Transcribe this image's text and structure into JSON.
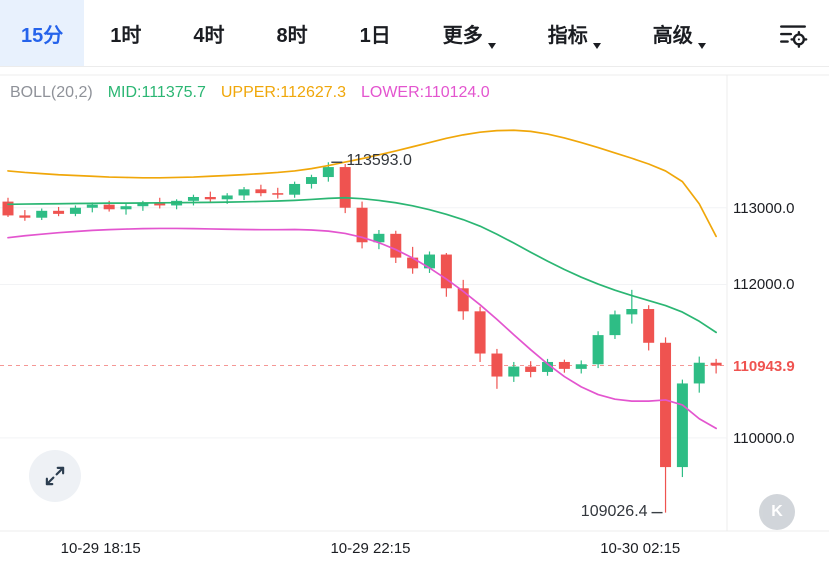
{
  "toolbar": {
    "tabs": [
      {
        "label": "15分",
        "selected": true
      },
      {
        "label": "1时"
      },
      {
        "label": "4时"
      },
      {
        "label": "8时"
      },
      {
        "label": "1日"
      },
      {
        "label": "更多",
        "dropdown": true
      },
      {
        "label": "指标",
        "dropdown": true
      },
      {
        "label": "高级",
        "dropdown": true
      }
    ]
  },
  "indicator": {
    "name": "BOLL(20,2)",
    "mid": "MID:111375.7",
    "upper": "UPPER:112627.3",
    "lower": "LOWER:110124.0"
  },
  "colors": {
    "up": "#2ebd85",
    "down": "#ef5350",
    "boll_mid": "#2bb673",
    "boll_upper": "#f0a70a",
    "boll_lower": "#e355cf",
    "accent_blue": "#2563eb",
    "accent_blue_bg": "#e8f1fd",
    "text_dark": "#1b1d22",
    "text_gray": "#8f9299",
    "grid": "#f2f3f5",
    "axis_border": "#ececec"
  },
  "watermark": "K",
  "chart_data": {
    "type": "candlestick",
    "interval": "15m",
    "indicator": "BOLL(20,2)",
    "ylim": [
      108800,
      114730
    ],
    "last_price": 110943.9,
    "last_price_label": "110943.9",
    "high": {
      "value": 113593.0,
      "label": "113593.0"
    },
    "low": {
      "value": 109026.4,
      "label": "109026.4"
    },
    "y_ticks": [
      {
        "label": "113000.0",
        "price": 113000
      },
      {
        "label": "112000.0",
        "price": 112000
      },
      {
        "label": "110000.0",
        "price": 110000
      }
    ],
    "x_ticks": [
      {
        "label": "10-29 18:15",
        "index": 5.5
      },
      {
        "label": "10-29 22:15",
        "index": 21.5
      },
      {
        "label": "10-30 02:15",
        "index": 37.5
      }
    ],
    "candles": [
      [
        113080,
        113130,
        112880,
        112900
      ],
      [
        112900,
        112970,
        112830,
        112870
      ],
      [
        112870,
        112990,
        112840,
        112960
      ],
      [
        112960,
        113010,
        112890,
        112920
      ],
      [
        112920,
        113030,
        112890,
        113000
      ],
      [
        113000,
        113070,
        112940,
        113040
      ],
      [
        113040,
        113090,
        112950,
        112980
      ],
      [
        112980,
        113050,
        112910,
        113020
      ],
      [
        113020,
        113090,
        112960,
        113060
      ],
      [
        113060,
        113130,
        112990,
        113030
      ],
      [
        113030,
        113110,
        112980,
        113090
      ],
      [
        113090,
        113170,
        113030,
        113140
      ],
      [
        113140,
        113210,
        113080,
        113110
      ],
      [
        113110,
        113190,
        113050,
        113160
      ],
      [
        113160,
        113270,
        113100,
        113240
      ],
      [
        113240,
        113300,
        113150,
        113190
      ],
      [
        113190,
        113260,
        113120,
        113170
      ],
      [
        113170,
        113340,
        113130,
        113310
      ],
      [
        113310,
        113430,
        113250,
        113400
      ],
      [
        113400,
        113593,
        113340,
        113530
      ],
      [
        113530,
        113570,
        112930,
        113000
      ],
      [
        113000,
        113080,
        112470,
        112550
      ],
      [
        112550,
        112710,
        112460,
        112660
      ],
      [
        112660,
        112700,
        112280,
        112350
      ],
      [
        112350,
        112490,
        112140,
        112210
      ],
      [
        112210,
        112430,
        112150,
        112390
      ],
      [
        112390,
        112410,
        111840,
        111950
      ],
      [
        111950,
        112060,
        111540,
        111650
      ],
      [
        111650,
        111710,
        110990,
        111100
      ],
      [
        111100,
        111160,
        110640,
        110800
      ],
      [
        110800,
        110990,
        110730,
        110930
      ],
      [
        110930,
        111000,
        110790,
        110860
      ],
      [
        110860,
        111030,
        110810,
        110990
      ],
      [
        110990,
        111020,
        110850,
        110900
      ],
      [
        110900,
        111010,
        110840,
        110960
      ],
      [
        110960,
        111390,
        110910,
        111340
      ],
      [
        111340,
        111660,
        111290,
        111610
      ],
      [
        111610,
        111930,
        111490,
        111680
      ],
      [
        111680,
        111730,
        111140,
        111240
      ],
      [
        111240,
        111310,
        109026.4,
        109620
      ],
      [
        109620,
        110760,
        109490,
        110710
      ],
      [
        110710,
        111060,
        110590,
        110980
      ],
      [
        110980,
        111030,
        110840,
        110943.9
      ]
    ],
    "bands": {
      "upper": [
        113480,
        113460,
        113445,
        113430,
        113420,
        113410,
        113400,
        113395,
        113390,
        113390,
        113395,
        113400,
        113410,
        113420,
        113432,
        113445,
        113460,
        113480,
        113510,
        113550,
        113595,
        113640,
        113690,
        113740,
        113795,
        113850,
        113905,
        113950,
        113985,
        114005,
        114010,
        113995,
        113960,
        113910,
        113850,
        113785,
        113715,
        113645,
        113570,
        113480,
        113340,
        113050,
        112627.3
      ],
      "mid": [
        113045,
        113048,
        113050,
        113052,
        113055,
        113057,
        113060,
        113060,
        113062,
        113064,
        113066,
        113068,
        113070,
        113073,
        113077,
        113082,
        113088,
        113096,
        113108,
        113122,
        113130,
        113118,
        113095,
        113065,
        113025,
        112975,
        112915,
        112845,
        112760,
        112655,
        112540,
        112420,
        112305,
        112195,
        112095,
        112005,
        111925,
        111855,
        111790,
        111725,
        111640,
        111520,
        111375.7
      ],
      "lower": [
        112610,
        112635,
        112655,
        112675,
        112690,
        112705,
        112715,
        112722,
        112728,
        112730,
        112730,
        112728,
        112724,
        112720,
        112716,
        112714,
        112714,
        112716,
        112710,
        112695,
        112665,
        112615,
        112545,
        112455,
        112345,
        112215,
        112070,
        111910,
        111735,
        111545,
        111345,
        111150,
        110965,
        110800,
        110665,
        110565,
        110505,
        110480,
        110480,
        110495,
        110430,
        110250,
        110124.0
      ]
    }
  }
}
